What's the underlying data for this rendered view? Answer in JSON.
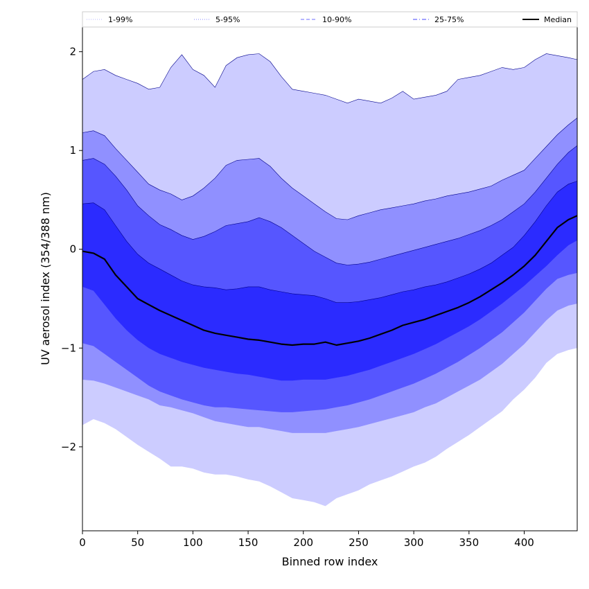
{
  "chart_data": {
    "type": "area",
    "title": "",
    "xlabel": "Binned row index",
    "ylabel": "UV aerosol index (354/388 nm)",
    "xlim": [
      0,
      448
    ],
    "ylim": [
      -2.85,
      2.25
    ],
    "xticks": [
      0,
      50,
      100,
      150,
      200,
      250,
      300,
      350,
      400
    ],
    "yticks": [
      -2,
      -1,
      0,
      1,
      2
    ],
    "ytick_labels": [
      "−2",
      "−1",
      "0",
      "1",
      "2"
    ],
    "x": [
      0,
      10,
      20,
      30,
      40,
      50,
      60,
      70,
      80,
      90,
      100,
      110,
      120,
      130,
      140,
      150,
      160,
      170,
      180,
      190,
      200,
      210,
      220,
      230,
      240,
      250,
      260,
      270,
      280,
      290,
      300,
      310,
      320,
      330,
      340,
      350,
      360,
      370,
      380,
      390,
      400,
      410,
      420,
      430,
      440,
      448
    ],
    "bands": [
      {
        "name": "1-99%",
        "color": "#ccccff",
        "line_style": "dotted",
        "line_color": "#c8c8ff",
        "upper": [
          1.72,
          1.8,
          1.82,
          1.76,
          1.72,
          1.68,
          1.62,
          1.64,
          1.84,
          1.97,
          1.82,
          1.76,
          1.64,
          1.86,
          1.94,
          1.97,
          1.98,
          1.9,
          1.75,
          1.62,
          1.6,
          1.58,
          1.56,
          1.52,
          1.48,
          1.52,
          1.5,
          1.48,
          1.53,
          1.6,
          1.52,
          1.54,
          1.56,
          1.6,
          1.72,
          1.74,
          1.76,
          1.8,
          1.84,
          1.82,
          1.84,
          1.92,
          1.98,
          1.96,
          1.94,
          1.92
        ],
        "lower": [
          -1.78,
          -1.72,
          -1.76,
          -1.82,
          -1.9,
          -1.98,
          -2.05,
          -2.12,
          -2.2,
          -2.2,
          -2.22,
          -2.26,
          -2.28,
          -2.28,
          -2.3,
          -2.33,
          -2.35,
          -2.4,
          -2.46,
          -2.52,
          -2.54,
          -2.56,
          -2.6,
          -2.52,
          -2.48,
          -2.44,
          -2.38,
          -2.34,
          -2.3,
          -2.25,
          -2.2,
          -2.16,
          -2.1,
          -2.02,
          -1.95,
          -1.88,
          -1.8,
          -1.72,
          -1.64,
          -1.52,
          -1.42,
          -1.3,
          -1.15,
          -1.06,
          -1.02,
          -1.0
        ]
      },
      {
        "name": "5-95%",
        "color": "#9090ff",
        "line_style": "dotted",
        "line_color": "#a0a0ff",
        "upper": [
          1.18,
          1.2,
          1.15,
          1.02,
          0.9,
          0.78,
          0.66,
          0.6,
          0.56,
          0.5,
          0.54,
          0.62,
          0.72,
          0.85,
          0.9,
          0.91,
          0.92,
          0.84,
          0.72,
          0.62,
          0.54,
          0.46,
          0.38,
          0.31,
          0.3,
          0.34,
          0.37,
          0.4,
          0.42,
          0.44,
          0.46,
          0.49,
          0.51,
          0.54,
          0.56,
          0.58,
          0.61,
          0.64,
          0.7,
          0.75,
          0.8,
          0.92,
          1.04,
          1.16,
          1.26,
          1.33
        ],
        "lower": [
          -1.32,
          -1.33,
          -1.36,
          -1.4,
          -1.44,
          -1.48,
          -1.52,
          -1.58,
          -1.6,
          -1.63,
          -1.66,
          -1.7,
          -1.74,
          -1.76,
          -1.78,
          -1.8,
          -1.8,
          -1.82,
          -1.84,
          -1.86,
          -1.86,
          -1.86,
          -1.86,
          -1.84,
          -1.82,
          -1.8,
          -1.77,
          -1.74,
          -1.71,
          -1.68,
          -1.65,
          -1.6,
          -1.56,
          -1.5,
          -1.44,
          -1.38,
          -1.32,
          -1.24,
          -1.16,
          -1.06,
          -0.96,
          -0.84,
          -0.72,
          -0.62,
          -0.57,
          -0.55
        ]
      },
      {
        "name": "10-90%",
        "color": "#5656ff",
        "line_style": "dashed",
        "line_color": "#8a8aff",
        "upper": [
          0.9,
          0.92,
          0.86,
          0.74,
          0.6,
          0.44,
          0.34,
          0.25,
          0.2,
          0.14,
          0.1,
          0.13,
          0.18,
          0.24,
          0.26,
          0.28,
          0.32,
          0.28,
          0.22,
          0.14,
          0.06,
          -0.02,
          -0.08,
          -0.14,
          -0.16,
          -0.15,
          -0.13,
          -0.1,
          -0.07,
          -0.04,
          -0.01,
          0.02,
          0.05,
          0.08,
          0.11,
          0.15,
          0.19,
          0.24,
          0.3,
          0.38,
          0.46,
          0.58,
          0.72,
          0.86,
          0.98,
          1.05
        ],
        "lower": [
          -0.95,
          -0.98,
          -1.06,
          -1.14,
          -1.22,
          -1.3,
          -1.38,
          -1.44,
          -1.48,
          -1.52,
          -1.55,
          -1.58,
          -1.6,
          -1.6,
          -1.61,
          -1.62,
          -1.63,
          -1.64,
          -1.65,
          -1.65,
          -1.64,
          -1.63,
          -1.62,
          -1.6,
          -1.58,
          -1.55,
          -1.52,
          -1.48,
          -1.44,
          -1.4,
          -1.36,
          -1.31,
          -1.26,
          -1.2,
          -1.14,
          -1.07,
          -1.0,
          -0.92,
          -0.84,
          -0.74,
          -0.64,
          -0.52,
          -0.4,
          -0.3,
          -0.26,
          -0.24
        ]
      },
      {
        "name": "25-75%",
        "color": "#2b2bff",
        "line_style": "dashdot",
        "line_color": "#6a6aff",
        "upper": [
          0.46,
          0.47,
          0.4,
          0.24,
          0.08,
          -0.05,
          -0.14,
          -0.2,
          -0.26,
          -0.32,
          -0.36,
          -0.38,
          -0.39,
          -0.41,
          -0.4,
          -0.38,
          -0.38,
          -0.41,
          -0.43,
          -0.45,
          -0.46,
          -0.47,
          -0.5,
          -0.54,
          -0.54,
          -0.53,
          -0.51,
          -0.49,
          -0.46,
          -0.43,
          -0.41,
          -0.38,
          -0.36,
          -0.33,
          -0.29,
          -0.25,
          -0.2,
          -0.14,
          -0.06,
          0.02,
          0.14,
          0.28,
          0.44,
          0.58,
          0.66,
          0.69
        ],
        "lower": [
          -0.38,
          -0.42,
          -0.56,
          -0.7,
          -0.82,
          -0.92,
          -1.0,
          -1.06,
          -1.1,
          -1.14,
          -1.17,
          -1.2,
          -1.22,
          -1.24,
          -1.26,
          -1.27,
          -1.29,
          -1.31,
          -1.33,
          -1.33,
          -1.32,
          -1.32,
          -1.32,
          -1.3,
          -1.28,
          -1.25,
          -1.22,
          -1.18,
          -1.14,
          -1.1,
          -1.06,
          -1.01,
          -0.96,
          -0.9,
          -0.84,
          -0.78,
          -0.71,
          -0.63,
          -0.55,
          -0.46,
          -0.37,
          -0.27,
          -0.17,
          -0.06,
          0.04,
          0.09
        ]
      }
    ],
    "series": [
      {
        "name": "Median",
        "color": "#000000",
        "values": [
          -0.02,
          -0.04,
          -0.1,
          -0.26,
          -0.38,
          -0.5,
          -0.56,
          -0.62,
          -0.67,
          -0.72,
          -0.77,
          -0.82,
          -0.85,
          -0.87,
          -0.89,
          -0.91,
          -0.92,
          -0.94,
          -0.96,
          -0.97,
          -0.96,
          -0.96,
          -0.94,
          -0.97,
          -0.95,
          -0.93,
          -0.9,
          -0.86,
          -0.82,
          -0.77,
          -0.74,
          -0.71,
          -0.67,
          -0.63,
          -0.59,
          -0.54,
          -0.48,
          -0.41,
          -0.34,
          -0.26,
          -0.17,
          -0.06,
          0.08,
          0.22,
          0.3,
          0.34
        ]
      }
    ],
    "legend": {
      "placement": "top",
      "entries": [
        {
          "label": "1-99%",
          "style": "dotted",
          "color": "#c8c8ff"
        },
        {
          "label": "5-95%",
          "style": "dotted",
          "color": "#a0a0ff"
        },
        {
          "label": "10-90%",
          "style": "dashed",
          "color": "#8a8aff"
        },
        {
          "label": "25-75%",
          "style": "dashdot",
          "color": "#6a6aff"
        },
        {
          "label": "Median",
          "style": "solid",
          "color": "#000000"
        }
      ]
    }
  }
}
